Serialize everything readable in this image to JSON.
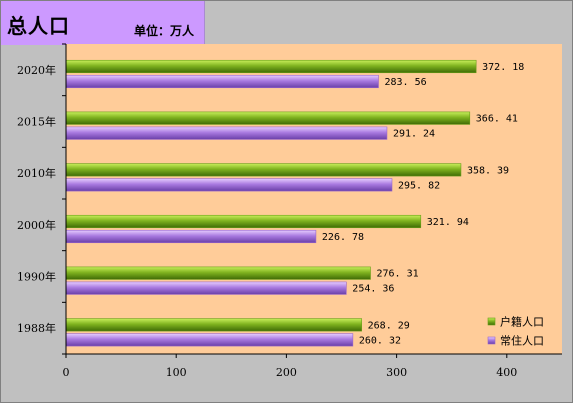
{
  "header": {
    "title": "总人口",
    "unit": "单位：万人"
  },
  "colors": {
    "plot_bg": "#ffcc99",
    "page_bg": "#c0c0c0",
    "title_bg": "#cc99ff",
    "series1": "#6b9e1a",
    "series2": "#9966cc"
  },
  "chart_data": {
    "type": "bar",
    "orientation": "horizontal",
    "categories": [
      "1988年",
      "1990年",
      "2000年",
      "2010年",
      "2015年",
      "2020年"
    ],
    "series": [
      {
        "name": "户籍人口",
        "values": [
          268.29,
          276.31,
          321.94,
          358.39,
          366.41,
          372.18
        ]
      },
      {
        "name": "常住人口",
        "values": [
          260.32,
          254.36,
          226.78,
          295.82,
          291.24,
          283.56
        ]
      }
    ],
    "data_labels": [
      [
        "268. 29",
        "276. 31",
        "321. 94",
        "358. 39",
        "366. 41",
        "372. 18"
      ],
      [
        "260. 32",
        "254. 36",
        "226. 78",
        "295. 82",
        "291. 24",
        "283. 56"
      ]
    ],
    "xlim": [
      0,
      450
    ],
    "x_ticks": [
      0,
      100,
      200,
      300,
      400
    ],
    "grid": false,
    "legend_position": "bottom-right"
  }
}
